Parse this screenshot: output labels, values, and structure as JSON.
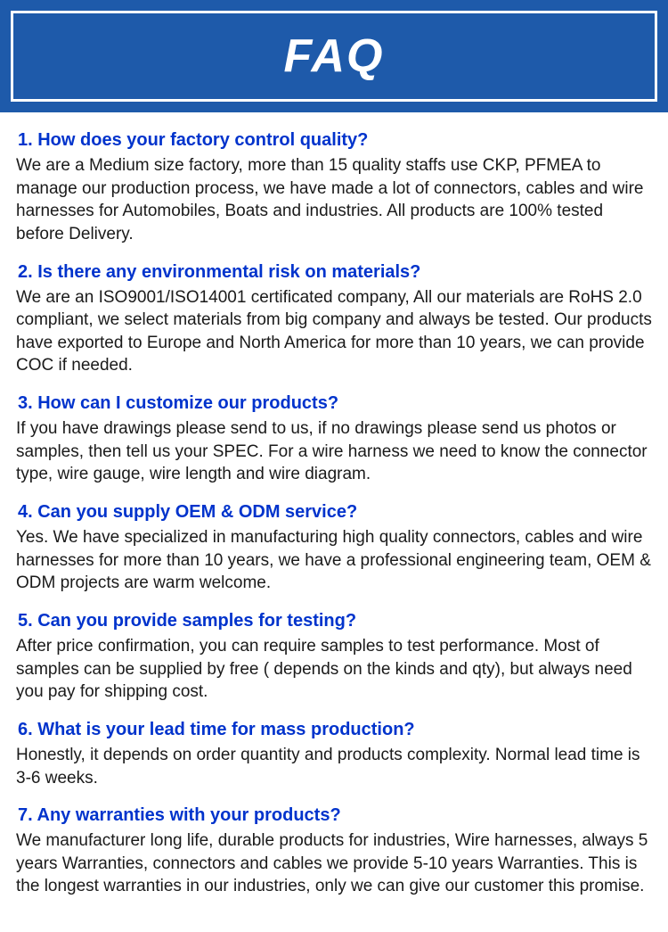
{
  "header": {
    "title": "FAQ",
    "bg_color": "#1e5aaa",
    "border_color": "#ffffff",
    "text_color": "#ffffff",
    "fontsize": 52
  },
  "styles": {
    "question_color": "#0033cc",
    "answer_color": "#1a1a1a",
    "question_fontsize": 20,
    "answer_fontsize": 19,
    "background_color": "#ffffff"
  },
  "faqs": [
    {
      "q": "1. How does your factory control quality?",
      "a": "We are a Medium size factory, more than 15 quality staffs use CKP, PFMEA to manage our production process, we have made a lot of connectors, cables and wire harnesses for Automobiles, Boats and industries. All products are 100% tested before Delivery."
    },
    {
      "q": "2. Is there any environmental risk on materials?",
      "a": "We are an ISO9001/ISO14001 certificated company, All our materials are RoHS 2.0 compliant, we select materials from big company and always be tested. Our products have exported to Europe and North America for more than 10 years, we can provide COC if needed."
    },
    {
      "q": "3. How can I customize our products?",
      "a": "If you have drawings please send to us, if no drawings please send us photos or samples, then tell us your SPEC. For a wire harness we need to know the connector type, wire gauge, wire length and wire diagram."
    },
    {
      "q": "4. Can you supply OEM & ODM service?",
      "a": "Yes. We have specialized in manufacturing high quality connectors, cables and wire harnesses for more than 10 years, we have a professional engineering team, OEM & ODM projects are warm welcome."
    },
    {
      "q": "5. Can you provide samples for testing?",
      "a": "After price confirmation, you can require samples to test performance. Most of samples can be supplied by free ( depends on the kinds and qty), but always need you pay for shipping cost."
    },
    {
      "q": "6. What is your lead time for mass production?",
      "a": "Honestly, it depends on order quantity and products complexity. Normal lead time is 3-6 weeks."
    },
    {
      "q": "7. Any warranties with your products?",
      "a": "We manufacturer long life, durable products for industries, Wire harnesses, always 5 years Warranties, connectors and cables we provide 5-10 years Warranties. This is the longest warranties in our industries, only we can give our customer this promise."
    }
  ]
}
